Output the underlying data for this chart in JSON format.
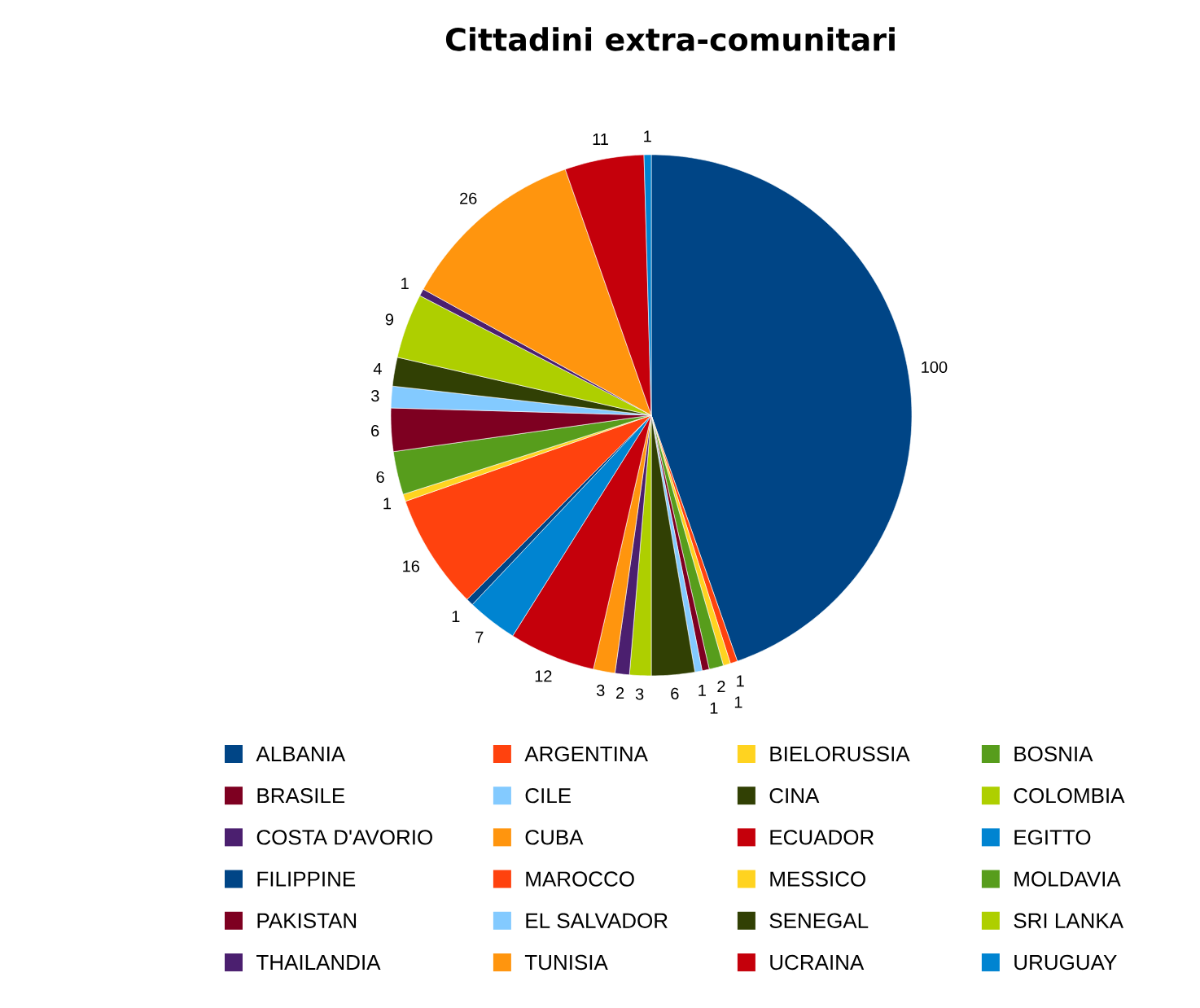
{
  "chart_data": {
    "type": "pie",
    "title": "Cittadini extra-comunitari",
    "categories": [
      "ALBANIA",
      "ARGENTINA",
      "BIELORUSSIA",
      "BOSNIA",
      "BRASILE",
      "CILE",
      "CINA",
      "COLOMBIA",
      "COSTA D'AVORIO",
      "CUBA",
      "ECUADOR",
      "EGITTO",
      "FILIPPINE",
      "MAROCCO",
      "MESSICO",
      "MOLDAVIA",
      "PAKISTAN",
      "EL SALVADOR",
      "SENEGAL",
      "SRI LANKA",
      "THAILANDIA",
      "TUNISIA",
      "UCRAINA",
      "URUGUAY"
    ],
    "values": [
      100,
      1,
      1,
      2,
      1,
      1,
      6,
      3,
      2,
      3,
      12,
      7,
      1,
      16,
      1,
      6,
      6,
      3,
      4,
      9,
      1,
      26,
      11,
      1
    ],
    "colors": [
      "#004586",
      "#ff420e",
      "#ffd320",
      "#579d1c",
      "#7e0021",
      "#83caff",
      "#314004",
      "#aecf00",
      "#4b1f6f",
      "#ff950e",
      "#c5000b",
      "#0084d1",
      "#004586",
      "#ff420e",
      "#ffd320",
      "#579d1c",
      "#7e0021",
      "#83caff",
      "#314004",
      "#aecf00",
      "#4b1f6f",
      "#ff950e",
      "#c5000b",
      "#0084d1"
    ],
    "data_labels": true,
    "legend": "bottom"
  }
}
